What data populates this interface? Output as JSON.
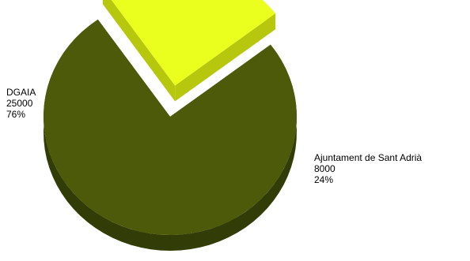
{
  "chart_data": {
    "type": "pie",
    "style": "3d-exploded",
    "slices": [
      {
        "label": "DGAIA",
        "value": 25000,
        "percent": "76%",
        "value_text": "25000",
        "color": "#4d5a0a",
        "side_color": "#323c06"
      },
      {
        "label": "Ajuntament de Sant Adrià",
        "value": 8000,
        "percent": "24%",
        "value_text": "8000",
        "color": "#ebff1f",
        "side_color": "#b6c70d"
      }
    ],
    "title": "",
    "legend": "none"
  }
}
